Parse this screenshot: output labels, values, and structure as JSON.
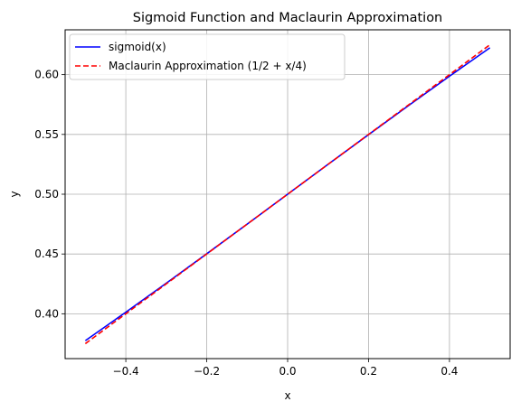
{
  "chart_data": {
    "type": "line",
    "title": "Sigmoid Function and Maclaurin Approximation",
    "xlabel": "x",
    "ylabel": "y",
    "xlim": [
      -0.55,
      0.55
    ],
    "ylim": [
      0.3625,
      0.6375
    ],
    "x_ticks": [
      -0.4,
      -0.2,
      0.0,
      0.2,
      0.4
    ],
    "x_tick_labels": [
      "−0.4",
      "−0.2",
      "0.0",
      "0.2",
      "0.4"
    ],
    "y_ticks": [
      0.4,
      0.45,
      0.5,
      0.55,
      0.6
    ],
    "y_tick_labels": [
      "0.40",
      "0.45",
      "0.50",
      "0.55",
      "0.60"
    ],
    "grid": true,
    "legend_position": "top-left",
    "series": [
      {
        "name": "sigmoid(x)",
        "color": "#0000ff",
        "style": "solid",
        "x": [
          -0.5,
          -0.4,
          -0.3,
          -0.2,
          -0.1,
          0.0,
          0.1,
          0.2,
          0.3,
          0.4,
          0.5
        ],
        "y": [
          0.3775,
          0.4013,
          0.4256,
          0.4502,
          0.475,
          0.5,
          0.525,
          0.5498,
          0.5744,
          0.5987,
          0.6225
        ]
      },
      {
        "name": "Maclaurin Approximation (1/2 + x/4)",
        "color": "#ff0000",
        "style": "dashed",
        "x": [
          -0.5,
          0.5
        ],
        "y": [
          0.375,
          0.625
        ]
      }
    ]
  }
}
